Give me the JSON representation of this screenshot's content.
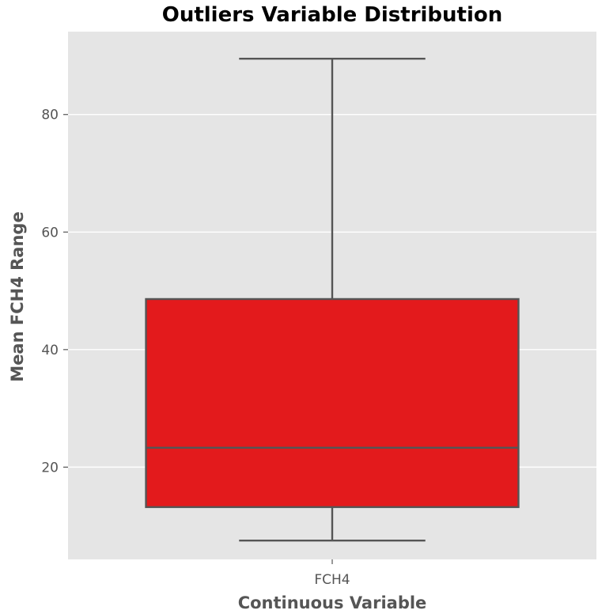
{
  "chart_data": {
    "type": "box",
    "title": "Outliers Variable Distribution",
    "xlabel": "Continuous Variable",
    "ylabel": "Mean FCH4 Range",
    "categories": [
      "FCH4"
    ],
    "boxes": [
      {
        "name": "FCH4",
        "whisker_low": 7.5,
        "q1": 13.2,
        "median": 23.3,
        "q3": 48.6,
        "whisker_high": 89.5
      }
    ],
    "yticks": [
      20,
      40,
      60,
      80
    ],
    "ylim": [
      4.3,
      94.1
    ],
    "grid": true,
    "legend": "none",
    "colors": {
      "plot_background": "#e5e5e5",
      "box_fill": "#e31a1c",
      "box_edge": "#555555",
      "grid": "#ffffff",
      "text": "#555555",
      "title": "#000000"
    }
  }
}
